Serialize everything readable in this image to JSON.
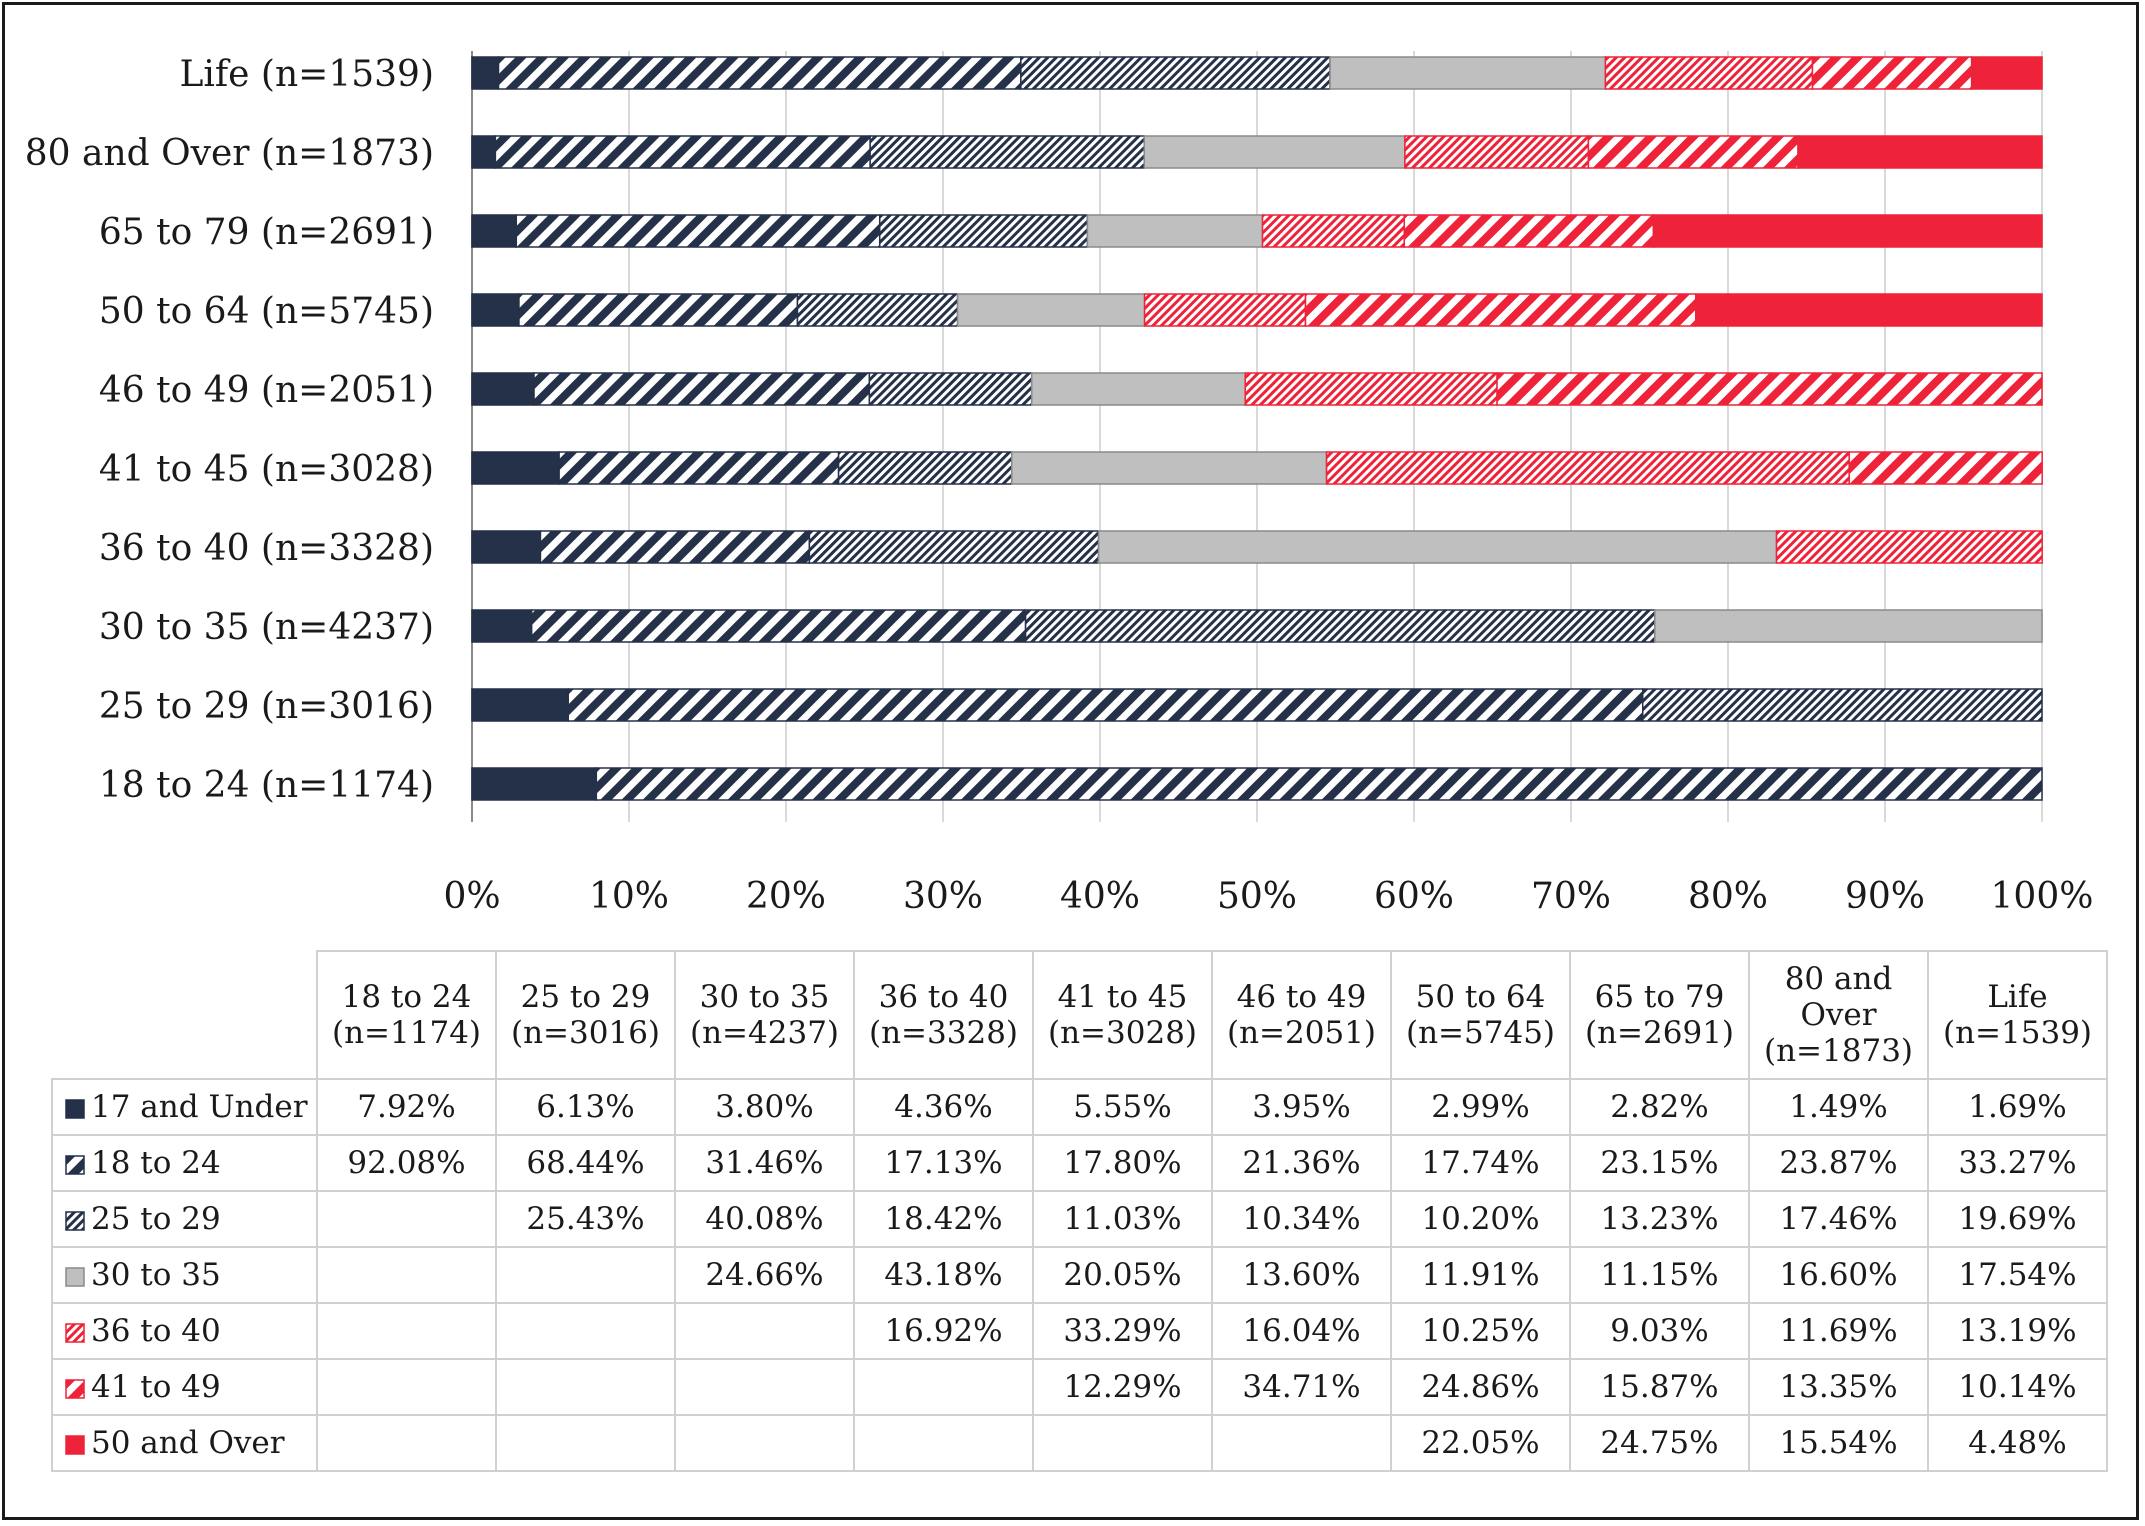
{
  "chart_data": {
    "type": "bar",
    "orientation": "horizontal",
    "stacked": "percent",
    "categories": [
      "Life (n=1539)",
      "80 and Over (n=1873)",
      "65 to 79 (n=2691)",
      "50 to 64 (n=5745)",
      "46 to 49 (n=2051)",
      "41 to 45 (n=3028)",
      "36 to 40 (n=3328)",
      "30 to 35 (n=4237)",
      "25 to 29 (n=3016)",
      "18 to 24 (n=1174)"
    ],
    "x_ticks": [
      "0%",
      "10%",
      "20%",
      "30%",
      "40%",
      "50%",
      "60%",
      "70%",
      "80%",
      "90%",
      "100%"
    ],
    "xlim": [
      0,
      100
    ],
    "grid": "vertical",
    "series": [
      {
        "name": "17 and Under",
        "color": "#253148",
        "pattern": "solid",
        "values": [
          1.69,
          1.49,
          2.82,
          2.99,
          3.95,
          5.55,
          4.36,
          3.8,
          6.13,
          7.92
        ]
      },
      {
        "name": "18 to 24",
        "color": "#253148",
        "pattern": "wide-diagonal",
        "values": [
          33.27,
          23.87,
          23.15,
          17.74,
          21.36,
          17.8,
          17.13,
          31.46,
          68.44,
          92.08
        ]
      },
      {
        "name": "25 to 29",
        "color": "#253148",
        "pattern": "fine-diagonal",
        "values": [
          19.69,
          17.46,
          13.23,
          10.2,
          10.34,
          11.03,
          18.42,
          40.08,
          25.43,
          null
        ]
      },
      {
        "name": "30 to 35",
        "color": "#bfbfbf",
        "pattern": "solid",
        "values": [
          17.54,
          16.6,
          11.15,
          11.91,
          13.6,
          20.05,
          43.18,
          24.66,
          null,
          null
        ]
      },
      {
        "name": "36 to 40",
        "color": "#ee2238",
        "pattern": "fine-diagonal",
        "values": [
          13.19,
          11.69,
          9.03,
          10.25,
          16.04,
          33.29,
          16.92,
          null,
          null,
          null
        ]
      },
      {
        "name": "41 to 49",
        "color": "#ee2238",
        "pattern": "wide-diagonal",
        "values": [
          10.14,
          13.35,
          15.87,
          24.86,
          34.71,
          12.29,
          null,
          null,
          null,
          null
        ]
      },
      {
        "name": "50 and Over",
        "color": "#ee2238",
        "pattern": "solid",
        "values": [
          4.48,
          15.54,
          24.75,
          22.05,
          null,
          null,
          null,
          null,
          null,
          null
        ]
      }
    ]
  },
  "table": {
    "columns": [
      {
        "line1": "18 to 24",
        "line2": "(n=1174)",
        "line3": ""
      },
      {
        "line1": "25 to 29",
        "line2": "(n=3016)",
        "line3": ""
      },
      {
        "line1": "30 to 35",
        "line2": "(n=4237)",
        "line3": ""
      },
      {
        "line1": "36 to 40",
        "line2": "(n=3328)",
        "line3": ""
      },
      {
        "line1": "41 to 45",
        "line2": "(n=3028)",
        "line3": ""
      },
      {
        "line1": "46 to 49",
        "line2": "(n=2051)",
        "line3": ""
      },
      {
        "line1": "50 to 64",
        "line2": "(n=5745)",
        "line3": ""
      },
      {
        "line1": "65 to 79",
        "line2": "(n=2691)",
        "line3": ""
      },
      {
        "line1": "80 and",
        "line2": "Over",
        "line3": "(n=1873)"
      },
      {
        "line1": "Life",
        "line2": "(n=1539)",
        "line3": ""
      }
    ],
    "rows": [
      {
        "label": "17 and Under",
        "cells": [
          "7.92%",
          "6.13%",
          "3.80%",
          "4.36%",
          "5.55%",
          "3.95%",
          "2.99%",
          "2.82%",
          "1.49%",
          "1.69%"
        ]
      },
      {
        "label": "18 to 24",
        "cells": [
          "92.08%",
          "68.44%",
          "31.46%",
          "17.13%",
          "17.80%",
          "21.36%",
          "17.74%",
          "23.15%",
          "23.87%",
          "33.27%"
        ]
      },
      {
        "label": "25 to 29",
        "cells": [
          "",
          "25.43%",
          "40.08%",
          "18.42%",
          "11.03%",
          "10.34%",
          "10.20%",
          "13.23%",
          "17.46%",
          "19.69%"
        ]
      },
      {
        "label": "30 to 35",
        "cells": [
          "",
          "",
          "24.66%",
          "43.18%",
          "20.05%",
          "13.60%",
          "11.91%",
          "11.15%",
          "16.60%",
          "17.54%"
        ]
      },
      {
        "label": "36 to 40",
        "cells": [
          "",
          "",
          "",
          "16.92%",
          "33.29%",
          "16.04%",
          "10.25%",
          "9.03%",
          "11.69%",
          "13.19%"
        ]
      },
      {
        "label": "41 to 49",
        "cells": [
          "",
          "",
          "",
          "",
          "12.29%",
          "34.71%",
          "24.86%",
          "15.87%",
          "13.35%",
          "10.14%"
        ]
      },
      {
        "label": "50 and Over",
        "cells": [
          "",
          "",
          "",
          "",
          "",
          "",
          "22.05%",
          "24.75%",
          "15.54%",
          "4.48%"
        ]
      }
    ]
  }
}
